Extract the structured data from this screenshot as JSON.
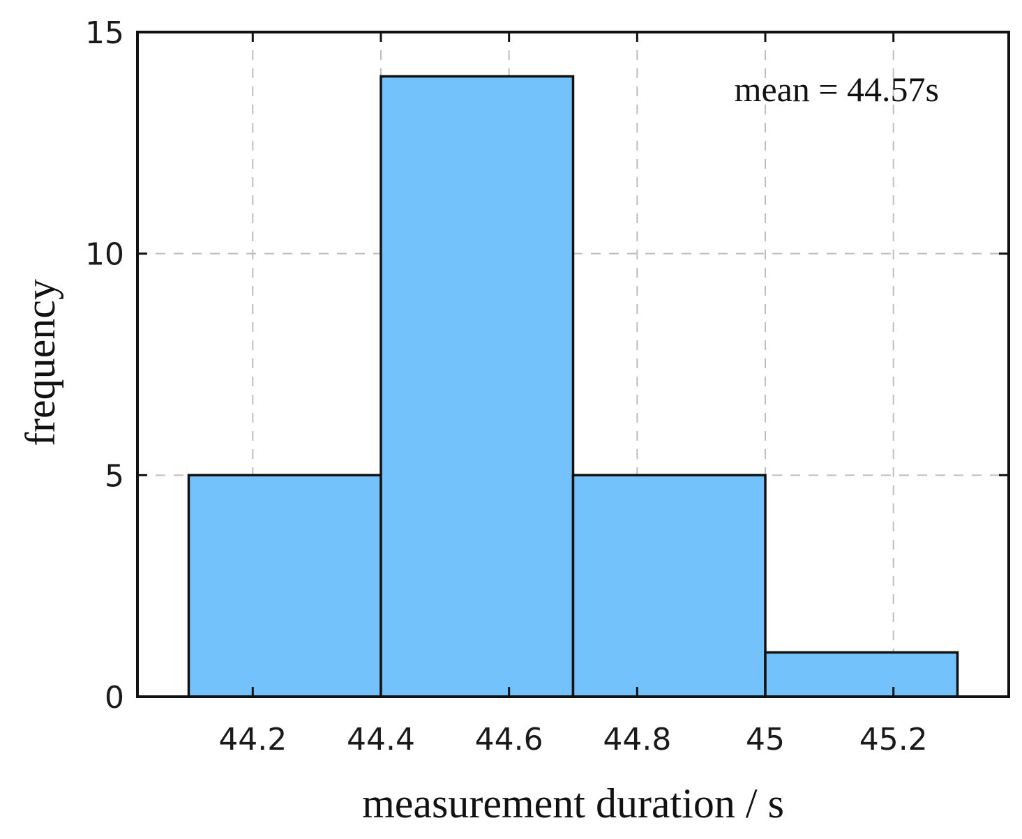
{
  "chart_data": {
    "type": "bar",
    "subtype": "histogram",
    "bins": [
      {
        "from": 44.1,
        "to": 44.4,
        "value": 5
      },
      {
        "from": 44.4,
        "to": 44.7,
        "value": 14
      },
      {
        "from": 44.7,
        "to": 45.0,
        "value": 5
      },
      {
        "from": 45.0,
        "to": 45.3,
        "value": 1
      }
    ],
    "xlabel": "measurement duration / s",
    "ylabel": "frequency",
    "xlim": [
      44.02,
      45.38
    ],
    "ylim": [
      0,
      15
    ],
    "xticks": [
      44.2,
      44.4,
      44.6,
      44.8,
      45,
      45.2
    ],
    "xtick_labels": [
      "44.2",
      "44.4",
      "44.6",
      "44.8",
      "45",
      "45.2"
    ],
    "yticks": [
      0,
      5,
      10,
      15
    ],
    "ytick_labels": [
      "0",
      "5",
      "10",
      "15"
    ],
    "annotation": "mean = 44.57s",
    "grid": true,
    "grid_style": "dashed",
    "bar_color": "#74c2fb",
    "edge_color": "#111111",
    "grid_color": "#bdbdbd"
  }
}
